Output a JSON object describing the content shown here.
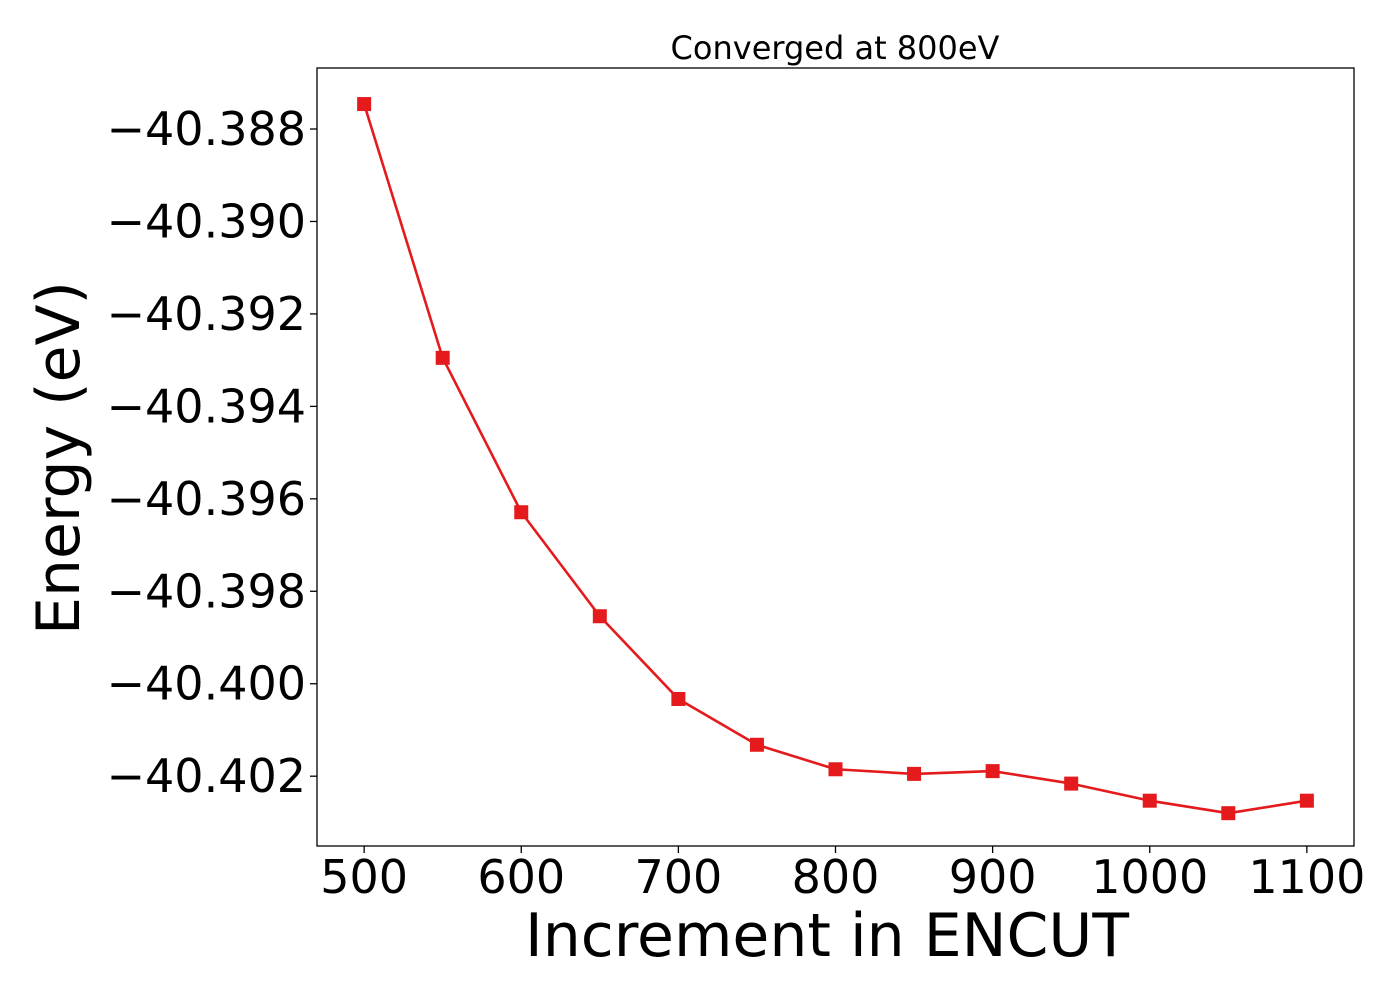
{
  "chart_data": {
    "type": "line",
    "title": "Converged at 800eV",
    "xlabel": "Increment in ENCUT",
    "ylabel": "Energy (eV)",
    "x": [
      500,
      550,
      600,
      650,
      700,
      750,
      800,
      850,
      900,
      950,
      1000,
      1050,
      1100
    ],
    "series": [
      {
        "values": [
          -40.38746,
          -40.39295,
          -40.39629,
          -40.39854,
          -40.40033,
          -40.40132,
          -40.40185,
          -40.40195,
          -40.40189,
          -40.40216,
          -40.40253,
          -40.4028,
          -40.40253
        ],
        "color": "#e41a1c",
        "marker": "square"
      }
    ],
    "xlim": [
      470,
      1130
    ],
    "ylim": [
      -40.40351,
      -40.38668
    ],
    "xticks": [
      500,
      600,
      700,
      800,
      900,
      1000,
      1100
    ],
    "xtick_labels": [
      "500",
      "600",
      "700",
      "800",
      "900",
      "1000",
      "1100"
    ],
    "yticks": [
      -40.388,
      -40.39,
      -40.392,
      -40.394,
      -40.396,
      -40.398,
      -40.4,
      -40.402
    ],
    "ytick_labels": [
      "−40.388",
      "−40.390",
      "−40.392",
      "−40.394",
      "−40.396",
      "−40.398",
      "−40.400",
      "−40.402"
    ],
    "grid": false,
    "legend": "none"
  }
}
